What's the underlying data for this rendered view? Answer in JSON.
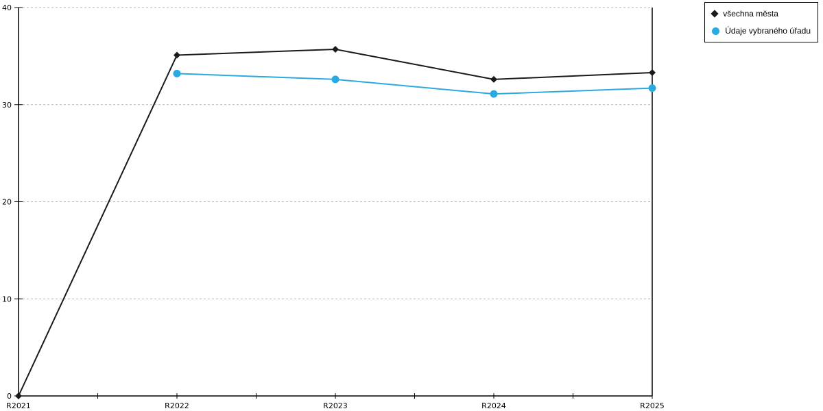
{
  "chart_data": {
    "type": "line",
    "title": "",
    "xlabel": "",
    "ylabel": "",
    "categories": [
      "R2021",
      "R2022",
      "R2023",
      "R2024",
      "R2025"
    ],
    "series": [
      {
        "name": "všechna města",
        "marker": "diamond",
        "color": "#1a1a1a",
        "values": [
          0,
          35.1,
          35.7,
          32.6,
          33.3
        ]
      },
      {
        "name": "Údaje vybraného úřadu",
        "marker": "circle",
        "color": "#29abe2",
        "values": [
          null,
          33.2,
          32.6,
          31.1,
          31.7
        ]
      }
    ],
    "ylim": [
      0,
      40
    ],
    "yticks": [
      0,
      10,
      20,
      30,
      40
    ],
    "ytick_labels": [
      "0",
      "10",
      "20",
      "30",
      "40"
    ],
    "grid": true,
    "gridline_color": "#b3b3b3",
    "axis_color": "#000000",
    "legend_position": "top-right"
  }
}
